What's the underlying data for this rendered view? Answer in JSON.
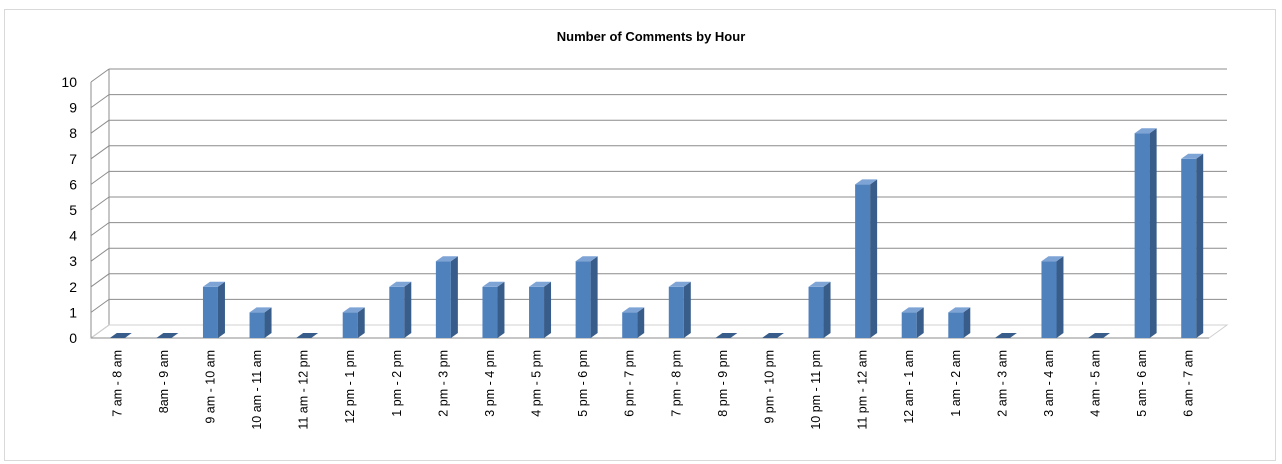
{
  "chart_data": {
    "type": "bar",
    "title": "Number of Comments by Hour",
    "xlabel": "",
    "ylabel": "",
    "ylim": [
      0,
      10
    ],
    "yticks": [
      0,
      1,
      2,
      3,
      4,
      5,
      6,
      7,
      8,
      9,
      10
    ],
    "grid": true,
    "legend": "none",
    "categories": [
      "7 am - 8 am",
      "8am - 9 am",
      "9 am - 10 am",
      "10 am - 11 am",
      "11 am - 12 pm",
      "12 pm - 1 pm",
      "1 pm - 2 pm",
      "2 pm - 3 pm",
      "3 pm - 4 pm",
      "4 pm - 5 pm",
      "5 pm - 6 pm",
      "6 pm - 7 pm",
      "7 pm - 8 pm",
      "8 pm - 9 pm",
      "9 pm - 10 pm",
      "10 pm - 11 pm",
      "11 pm - 12 am",
      "12 am - 1 am",
      "1 am - 2 am",
      "2 am - 3 am",
      "3 am - 4 am",
      "4 am - 5 am",
      "5 am - 6 am",
      "6 am - 7 am"
    ],
    "values": [
      0,
      0,
      2,
      1,
      0,
      1,
      2,
      3,
      2,
      2,
      3,
      1,
      2,
      0,
      0,
      2,
      6,
      1,
      1,
      0,
      3,
      0,
      8,
      7
    ],
    "colors": {
      "bar_front": "#4f81bd",
      "bar_side": "#385d8a",
      "bar_top": "#7ea4d6",
      "grid": "#8c8c8c",
      "floor": "#d0d0d0",
      "text": "#000000"
    }
  }
}
